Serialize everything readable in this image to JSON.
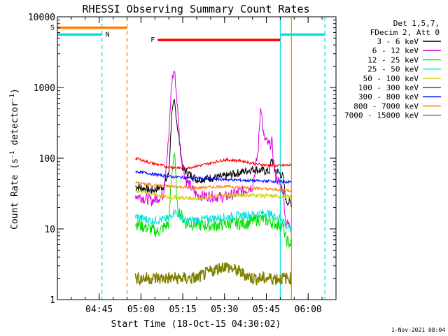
{
  "chart_data": {
    "type": "line",
    "title": "RHESSI Observing Summary Count Rates",
    "xlabel": "Start Time (18-Oct-15 04:30:02)",
    "ylabel_main": "Count Rate (s",
    "ylabel_sup1": "-1",
    "ylabel_mid": " detector",
    "ylabel_sup2": "-1",
    "ylabel_end": ")",
    "y_scale": "log",
    "xlim_minutes": [
      0,
      100
    ],
    "ylim": [
      1,
      10000
    ],
    "x_ticks": [
      {
        "m": 15,
        "label": "04:45"
      },
      {
        "m": 30,
        "label": "05:00"
      },
      {
        "m": 45,
        "label": "05:15"
      },
      {
        "m": 60,
        "label": "05:30"
      },
      {
        "m": 75,
        "label": "05:45"
      },
      {
        "m": 90,
        "label": "06:00"
      }
    ],
    "y_ticks": [
      {
        "v": 1,
        "label": "1"
      },
      {
        "v": 10,
        "label": "10"
      },
      {
        "v": 100,
        "label": "100"
      },
      {
        "v": 1000,
        "label": "1000"
      },
      {
        "v": 10000,
        "label": "10000"
      }
    ],
    "legend_title": [
      "Det 1,5,7,",
      "FDecim 2, Att 0"
    ],
    "legend_placement": "right",
    "series": [
      {
        "name": "3 - 6 keV",
        "color": "#000000",
        "points": [
          [
            28,
            40
          ],
          [
            34,
            35
          ],
          [
            38,
            40
          ],
          [
            40,
            60
          ],
          [
            41,
            400
          ],
          [
            42,
            650
          ],
          [
            43,
            300
          ],
          [
            45,
            70
          ],
          [
            50,
            50
          ],
          [
            60,
            55
          ],
          [
            70,
            70
          ],
          [
            76,
            65
          ],
          [
            77,
            100
          ],
          [
            78,
            70
          ],
          [
            81,
            55
          ],
          [
            82,
            25
          ],
          [
            84,
            23
          ]
        ]
      },
      {
        "name": "6 - 12 keV",
        "color": "#e000e0",
        "points": [
          [
            28,
            30
          ],
          [
            34,
            25
          ],
          [
            38,
            30
          ],
          [
            40,
            200
          ],
          [
            41,
            1200
          ],
          [
            42,
            1800
          ],
          [
            43,
            600
          ],
          [
            44,
            150
          ],
          [
            46,
            50
          ],
          [
            50,
            30
          ],
          [
            60,
            28
          ],
          [
            67,
            35
          ],
          [
            70,
            40
          ],
          [
            72,
            120
          ],
          [
            73,
            600
          ],
          [
            74,
            200
          ],
          [
            76,
            150
          ],
          [
            77,
            170
          ],
          [
            78,
            60
          ],
          [
            81,
            35
          ],
          [
            82,
            12
          ],
          [
            84,
            11
          ]
        ]
      },
      {
        "name": "12 - 25 keV",
        "color": "#00e000",
        "points": [
          [
            28,
            12
          ],
          [
            36,
            9
          ],
          [
            40,
            12
          ],
          [
            41,
            60
          ],
          [
            42,
            130
          ],
          [
            43,
            20
          ],
          [
            46,
            12
          ],
          [
            55,
            11
          ],
          [
            62,
            12
          ],
          [
            68,
            12
          ],
          [
            73,
            14
          ],
          [
            78,
            12
          ],
          [
            81,
            11
          ],
          [
            82,
            7
          ],
          [
            84,
            6
          ]
        ]
      },
      {
        "name": "25 - 50 keV",
        "color": "#00e0e0",
        "points": [
          [
            28,
            15
          ],
          [
            34,
            13
          ],
          [
            40,
            14
          ],
          [
            42,
            18
          ],
          [
            46,
            13
          ],
          [
            55,
            14
          ],
          [
            62,
            15
          ],
          [
            70,
            16
          ],
          [
            75,
            17
          ],
          [
            78,
            15
          ],
          [
            81,
            14
          ],
          [
            82,
            11
          ],
          [
            84,
            10
          ]
        ]
      },
      {
        "name": "50 - 100 keV",
        "color": "#d0d000",
        "points": [
          [
            28,
            35
          ],
          [
            40,
            28
          ],
          [
            50,
            27
          ],
          [
            60,
            30
          ],
          [
            70,
            30
          ],
          [
            78,
            29
          ],
          [
            84,
            28
          ]
        ]
      },
      {
        "name": "100 - 300 keV",
        "color": "#ff0000",
        "points": [
          [
            28,
            100
          ],
          [
            34,
            85
          ],
          [
            40,
            75
          ],
          [
            46,
            72
          ],
          [
            52,
            80
          ],
          [
            60,
            95
          ],
          [
            66,
            92
          ],
          [
            72,
            82
          ],
          [
            78,
            78
          ],
          [
            84,
            80
          ]
        ]
      },
      {
        "name": "300 - 800 keV",
        "color": "#0000ff",
        "points": [
          [
            28,
            65
          ],
          [
            34,
            60
          ],
          [
            40,
            55
          ],
          [
            50,
            52
          ],
          [
            60,
            50
          ],
          [
            70,
            48
          ],
          [
            78,
            47
          ],
          [
            84,
            46
          ]
        ]
      },
      {
        "name": "800 - 7000 keV",
        "color": "#ff8000",
        "points": [
          [
            28,
            45
          ],
          [
            34,
            42
          ],
          [
            40,
            40
          ],
          [
            50,
            38
          ],
          [
            60,
            40
          ],
          [
            70,
            38
          ],
          [
            78,
            36
          ],
          [
            84,
            35
          ]
        ]
      },
      {
        "name": "7000 - 15000 keV",
        "color": "#808000",
        "points": [
          [
            28,
            2
          ],
          [
            40,
            2
          ],
          [
            50,
            2
          ],
          [
            55,
            2.5
          ],
          [
            60,
            3
          ],
          [
            65,
            2.5
          ],
          [
            70,
            2
          ],
          [
            78,
            2
          ],
          [
            84,
            2
          ]
        ]
      }
    ],
    "flag_bars": [
      {
        "label": "S",
        "color": "#ff8000",
        "value": 7000,
        "x0": 0,
        "x1": 25
      },
      {
        "label": "N",
        "color": "#00e0e0",
        "value": 5600,
        "x0": 0,
        "x1": 16
      },
      {
        "label": "",
        "color": "#00e0e0",
        "value": 5600,
        "x0": 80,
        "x1": 96
      },
      {
        "label": "F",
        "color": "#ff0000",
        "value": 4700,
        "x0": 36,
        "x1": 80
      }
    ],
    "vlines": [
      {
        "m": 0,
        "color": "#00e0e0",
        "dashed": false
      },
      {
        "m": 16,
        "color": "#00e0e0",
        "dashed": true
      },
      {
        "m": 25,
        "color": "#ff8000",
        "dashed": true
      },
      {
        "m": 80,
        "color": "#00e0e0",
        "dashed": false
      },
      {
        "m": 84,
        "color": "#ff8000",
        "dashed": false
      },
      {
        "m": 96,
        "color": "#00e0e0",
        "dashed": true
      }
    ],
    "footer_date": "1-Nov-2021 08:04"
  }
}
